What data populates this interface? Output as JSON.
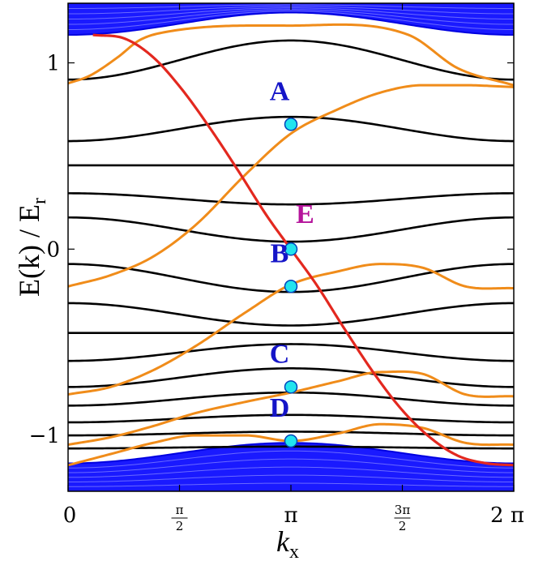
{
  "chart_data": {
    "type": "line",
    "title": "",
    "xlabel_base": "k",
    "xlabel_sub": "x",
    "ylabel_main": "E(k) / E",
    "ylabel_sub": "r",
    "xlim": [
      0,
      6.2832
    ],
    "ylim": [
      -1.3,
      1.32
    ],
    "x_ticks": [
      {
        "value": 0,
        "type": "plain",
        "text": "0"
      },
      {
        "value": 1.5708,
        "type": "frac",
        "num": "π",
        "den": "2"
      },
      {
        "value": 3.1416,
        "type": "plain",
        "text": "π"
      },
      {
        "value": 4.7124,
        "type": "frac",
        "num": "3π",
        "den": "2"
      },
      {
        "value": 6.2832,
        "type": "plain",
        "text": "2 π"
      }
    ],
    "y_ticks": [
      {
        "value": 1,
        "text": "1"
      },
      {
        "value": 0,
        "text": "0"
      },
      {
        "value": -1,
        "text": "−1"
      }
    ],
    "colors": {
      "bulk": "#1a1aff",
      "bulk_edge": "#0000e0",
      "bands": "#000000",
      "edge_states": "#f08c1a",
      "chiral_state": "#e3281f",
      "marker_fill": "#22e4ee",
      "marker_stroke": "#0044bb",
      "label_blue": "#1515c8",
      "label_purple": "#b5149b"
    },
    "bulk_bands": {
      "upper": {
        "top": 1.32,
        "bottom_at_0": 1.15,
        "bottom_at_pi": 1.27
      },
      "lower": {
        "bottom": -1.3,
        "top_at_0": -1.15,
        "top_at_pi": -1.04
      }
    },
    "black_bands": [
      {
        "offset": 0.91,
        "amp": 0.21
      },
      {
        "offset": 0.58,
        "amp": 0.13
      },
      {
        "offset": 0.45,
        "amp": 0.0
      },
      {
        "offset": 0.3,
        "amp": -0.06
      },
      {
        "offset": 0.17,
        "amp": -0.13
      },
      {
        "offset": -0.08,
        "amp": -0.15
      },
      {
        "offset": -0.29,
        "amp": -0.12
      },
      {
        "offset": -0.45,
        "amp": 0.0
      },
      {
        "offset": -0.6,
        "amp": 0.09
      },
      {
        "offset": -0.74,
        "amp": 0.1
      },
      {
        "offset": -0.84,
        "amp": 0.07
      },
      {
        "offset": -0.93,
        "amp": 0.04
      },
      {
        "offset": -1.0,
        "amp": 0.02
      },
      {
        "offset": -1.07,
        "amp": 0.01
      }
    ],
    "edge_bands": [
      {
        "name": "",
        "x": [
          0,
          0.3,
          0.7,
          1.0,
          1.3,
          3.14,
          4.8,
          5.5,
          6.28
        ],
        "y": [
          0.89,
          0.93,
          1.03,
          1.12,
          1.16,
          1.2,
          1.15,
          0.97,
          0.88
        ]
      },
      {
        "name": "",
        "x": [
          0,
          0.6,
          1.2,
          1.8,
          2.5,
          3.14,
          3.8,
          4.4,
          5.0,
          5.6,
          6.28
        ],
        "y": [
          -0.2,
          -0.14,
          -0.04,
          0.13,
          0.4,
          0.62,
          0.75,
          0.84,
          0.88,
          0.88,
          0.87
        ]
      },
      {
        "name": "",
        "x": [
          0,
          0.6,
          1.2,
          1.8,
          2.5,
          3.14,
          3.8,
          4.4,
          5.0,
          5.6,
          6.28
        ],
        "y": [
          -0.78,
          -0.74,
          -0.65,
          -0.52,
          -0.34,
          -0.19,
          -0.12,
          -0.08,
          -0.1,
          -0.2,
          -0.21
        ]
      },
      {
        "name": "",
        "x": [
          0,
          0.6,
          1.2,
          1.8,
          2.5,
          3.14,
          3.8,
          4.4,
          5.0,
          5.6,
          6.28
        ],
        "y": [
          -1.05,
          -1.01,
          -0.95,
          -0.88,
          -0.82,
          -0.77,
          -0.71,
          -0.66,
          -0.67,
          -0.78,
          -0.79
        ]
      },
      {
        "name": "",
        "x": [
          0,
          0.6,
          1.2,
          1.8,
          2.5,
          3.14,
          3.8,
          4.4,
          5.0,
          5.6,
          6.28
        ],
        "y": [
          -1.16,
          -1.1,
          -1.04,
          -1.0,
          -1.0,
          -1.03,
          -0.99,
          -0.94,
          -0.96,
          -1.04,
          -1.05
        ]
      }
    ],
    "chiral_band": {
      "x": [
        0.35,
        0.8,
        1.2,
        1.6,
        2.0,
        2.4,
        2.8,
        3.14,
        3.5,
        3.9,
        4.3,
        4.7,
        5.1,
        5.5,
        5.9,
        6.28
      ],
      "y": [
        1.15,
        1.13,
        1.03,
        0.86,
        0.65,
        0.42,
        0.18,
        0.0,
        -0.19,
        -0.43,
        -0.66,
        -0.86,
        -1.01,
        -1.11,
        -1.15,
        -1.16
      ]
    },
    "points": [
      {
        "label": "A",
        "x": 3.1416,
        "y": 0.67,
        "label_color": "blue",
        "label_dx": -0.16,
        "label_dy": 0.13
      },
      {
        "label": "E",
        "x": 3.1416,
        "y": 0.0,
        "label_color": "purple",
        "label_dx": 0.2,
        "label_dy": 0.14
      },
      {
        "label": "B",
        "x": 3.1416,
        "y": -0.2,
        "label_color": "blue",
        "label_dx": -0.16,
        "label_dy": 0.13
      },
      {
        "label": "C",
        "x": 3.1416,
        "y": -0.74,
        "label_color": "blue",
        "label_dx": -0.16,
        "label_dy": 0.13
      },
      {
        "label": "D",
        "x": 3.1416,
        "y": -1.03,
        "label_color": "blue",
        "label_dx": -0.16,
        "label_dy": 0.13
      }
    ]
  }
}
